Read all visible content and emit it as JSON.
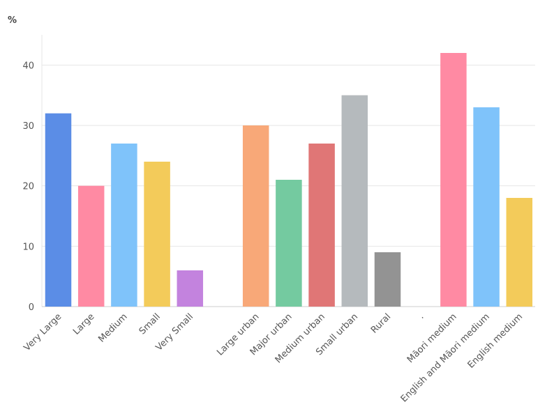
{
  "chart_data": {
    "type": "bar",
    "ylabel": "%",
    "ylim": [
      0,
      45
    ],
    "yticks": [
      0,
      10,
      20,
      30,
      40
    ],
    "grid": true,
    "legend": "none",
    "categories": [
      "Very Large",
      "Large",
      "Medium",
      "Small",
      "Very Small",
      "",
      "Large urban",
      "Major urban",
      "Medium urban",
      "Small urban",
      "Rural",
      ".",
      "Māori medium",
      "English and Māori medium",
      "English medium"
    ],
    "values": [
      32,
      20,
      27,
      24,
      6,
      null,
      30,
      21,
      27,
      35,
      9,
      null,
      42,
      33,
      18
    ],
    "colors": [
      "#5b8de6",
      "#ff8aa3",
      "#7fc3fa",
      "#f3cb5a",
      "#c383de",
      "",
      "#f8a878",
      "#74caa0",
      "#e07676",
      "#b5babd",
      "#939393",
      "",
      "#ff8aa3",
      "#7fc3fa",
      "#f3cb5a"
    ]
  }
}
